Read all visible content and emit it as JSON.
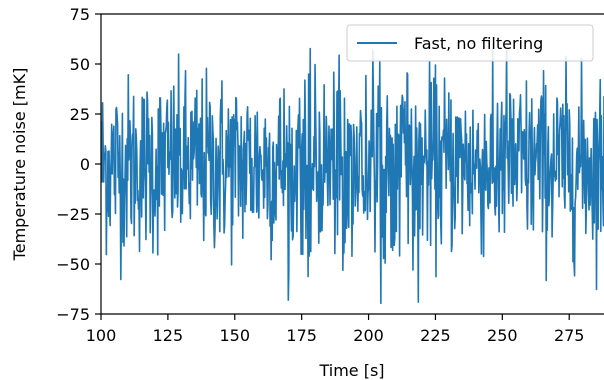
{
  "chart_data": {
    "type": "line",
    "title": "",
    "xlabel": "Time [s]",
    "ylabel": "Temperature noise [mK]",
    "xlim": [
      100,
      288
    ],
    "ylim": [
      -75,
      75
    ],
    "xticks": [
      100,
      125,
      150,
      175,
      200,
      225,
      250,
      275
    ],
    "yticks": [
      -75,
      -50,
      -25,
      0,
      25,
      50,
      75
    ],
    "xtick_labels": [
      "100",
      "125",
      "150",
      "175",
      "200",
      "225",
      "250",
      "275"
    ],
    "ytick_labels": [
      "−75",
      "−50",
      "−25",
      "0",
      "25",
      "50",
      "75"
    ],
    "grid": false,
    "legend": {
      "placement": "top-right",
      "entries": [
        "Fast, no filtering"
      ]
    },
    "series": [
      {
        "name": "Fast, no filtering",
        "color": "#1f77b4",
        "sample_interval_s": 0.2,
        "noise_std_mK": 22,
        "noise_range_mK": [
          -70,
          58
        ]
      }
    ]
  }
}
